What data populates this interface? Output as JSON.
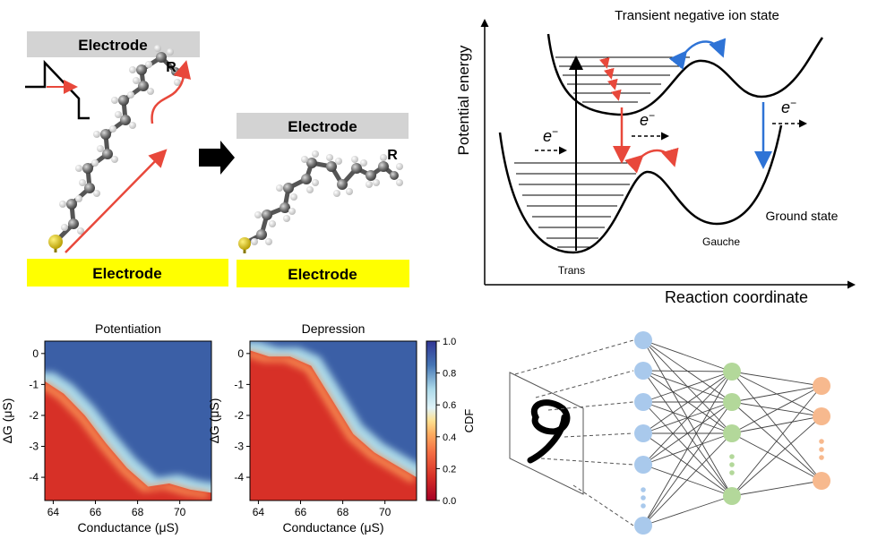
{
  "panel_a": {
    "before": {
      "electrode_top": "Electrode",
      "electrode_bottom": "Electrode",
      "r_label": "R"
    },
    "after": {
      "electrode_top": "Electrode",
      "electrode_bottom": "Electrode",
      "r_label": "R"
    }
  },
  "panel_b": {
    "title": "Transient negative ion state",
    "ylabel": "Potential energy",
    "xlabel": "Reaction coordinate",
    "ground_state": "Ground state",
    "gauche": "Gauche",
    "trans": "Trans",
    "electron": "e",
    "electron_sup": "−"
  },
  "colors": {
    "electrode_gray": "#d3d3d3",
    "electrode_yellow": "#ffff00",
    "arrow_red": "#e8483b",
    "arrow_blue": "#2e73d6",
    "node_blue": "#a9c9ec",
    "node_green": "#b3d89a",
    "node_orange": "#f7b98e"
  },
  "chart_data": [
    {
      "type": "heatmap",
      "title": "Potentiation",
      "xlabel": "Conductance (μS)",
      "ylabel": "ΔG (μS)",
      "xticks": [
        "64",
        "66",
        "68",
        "70"
      ],
      "yticks": [
        "0",
        "-1",
        "-2",
        "-3",
        "-4"
      ],
      "xlim": [
        63.6,
        71.5
      ],
      "ylim": [
        -4.75,
        0.4
      ],
      "boundary": [
        [
          63.6,
          -0.9
        ],
        [
          64.5,
          -1.3
        ],
        [
          65.5,
          -2.0
        ],
        [
          66.5,
          -2.9
        ],
        [
          67.5,
          -3.7
        ],
        [
          68.5,
          -4.3
        ],
        [
          69.5,
          -4.2
        ],
        [
          70.5,
          -4.4
        ],
        [
          71.5,
          -4.5
        ]
      ]
    },
    {
      "type": "heatmap",
      "title": "Depression",
      "xlabel": "Conductance (μS)",
      "ylabel": "ΔG (μS)",
      "xticks": [
        "64",
        "66",
        "68",
        "70"
      ],
      "yticks": [
        "0",
        "-1",
        "-2",
        "-3",
        "-4"
      ],
      "xlim": [
        63.6,
        71.5
      ],
      "ylim": [
        -4.75,
        0.4
      ],
      "boundary": [
        [
          63.6,
          0.1
        ],
        [
          64.5,
          -0.1
        ],
        [
          65.5,
          -0.1
        ],
        [
          66.5,
          -0.4
        ],
        [
          67.5,
          -1.5
        ],
        [
          68.5,
          -2.6
        ],
        [
          69.5,
          -3.2
        ],
        [
          70.5,
          -3.6
        ],
        [
          71.5,
          -4.0
        ]
      ]
    }
  ],
  "colorbar": {
    "label": "CDF",
    "ticks": [
      "1.0",
      "0.8",
      "0.6",
      "0.4",
      "0.2",
      "0.0"
    ]
  }
}
